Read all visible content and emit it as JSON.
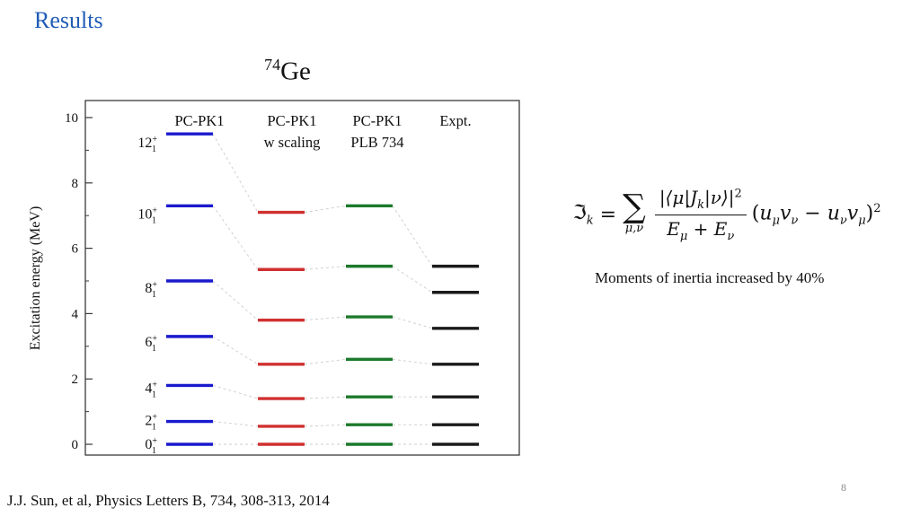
{
  "slide": {
    "title": "Results",
    "title_color": "#1f5cb5",
    "caption": "Moments of inertia increased by 40%",
    "citation": "J.J. Sun, et al, Physics Letters B, 734, 308-313, 2014",
    "page_number": "8"
  },
  "chart_data": {
    "type": "scatter",
    "subtype": "energy-level-diagram",
    "title": {
      "mass": "74",
      "element": "Ge",
      "text": "74Ge"
    },
    "ylabel": "Excitation energy (MeV)",
    "ylim": [
      0,
      10.5
    ],
    "yticks": [
      0,
      2,
      4,
      6,
      8,
      10
    ],
    "states": [
      {
        "spin": "0",
        "sup": "+",
        "sub": "1"
      },
      {
        "spin": "2",
        "sup": "+",
        "sub": "1"
      },
      {
        "spin": "4",
        "sup": "+",
        "sub": "1"
      },
      {
        "spin": "6",
        "sup": "+",
        "sub": "1"
      },
      {
        "spin": "8",
        "sup": "+",
        "sub": "1"
      },
      {
        "spin": "10",
        "sup": "+",
        "sub": "1"
      },
      {
        "spin": "12",
        "sup": "+",
        "sub": "1"
      }
    ],
    "columns": [
      {
        "header_line1": "PC-PK1",
        "header_line2": "",
        "color": "#1a1acd",
        "energies_mev": [
          0.0,
          0.7,
          1.8,
          3.3,
          5.0,
          7.3,
          9.5
        ]
      },
      {
        "header_line1": "PC-PK1",
        "header_line2": "w scaling",
        "color": "#d03030",
        "energies_mev": [
          0.0,
          0.55,
          1.4,
          2.45,
          3.8,
          5.35,
          7.1
        ]
      },
      {
        "header_line1": "PC-PK1",
        "header_line2": "PLB 734",
        "color": "#1b7a2b",
        "energies_mev": [
          0.0,
          0.6,
          1.45,
          2.6,
          3.9,
          5.45,
          7.3
        ]
      },
      {
        "header_line1": "Expt.",
        "header_line2": "",
        "color": "#1a1a1a",
        "energies_mev": [
          0.0,
          0.6,
          1.45,
          2.45,
          3.55,
          4.65,
          5.45
        ]
      }
    ],
    "connector_color": "#cccccc",
    "axis_color": "#3a3a3a"
  },
  "formula": {
    "lhs_symbol": "ℑ",
    "lhs_sub": "k",
    "equals": "=",
    "sum_symbol": "∑",
    "sum_sub": "μ,ν",
    "num_t1": "|⟨μ|J",
    "num_sub1": "k",
    "num_t2": "|ν⟩|",
    "num_sup": "2",
    "den_t1": "E",
    "den_sub1": "μ",
    "den_t2": " + E",
    "den_sub2": "ν",
    "open_paren": "(",
    "u1": "u",
    "u1_sub": "μ",
    "v1": "v",
    "v1_sub": "ν",
    "minus": " − ",
    "u2": "u",
    "u2_sub": "ν",
    "v2": "v",
    "v2_sub": "μ",
    "close_paren": ")",
    "outer_sup": "2"
  }
}
